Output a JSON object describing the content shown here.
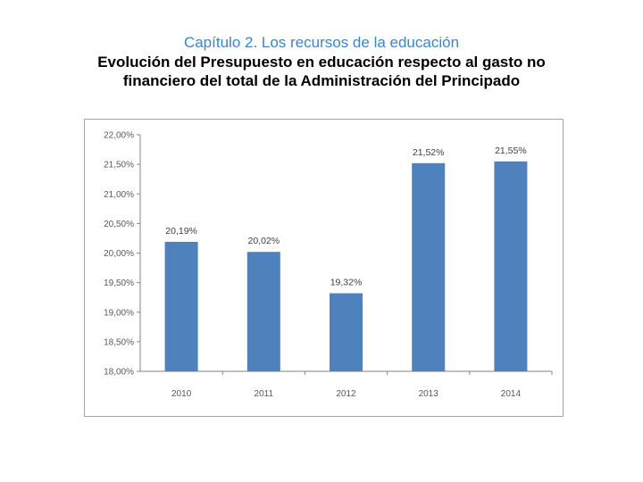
{
  "header": {
    "chapter": "Capítulo 2. Los recursos de la educación",
    "subtitle_line1": "Evolución del  Presupuesto en educación respecto al gasto no",
    "subtitle_line2": "financiero del total de la Administración del Principado"
  },
  "colors": {
    "chapter": "#3a86c8",
    "bar": "#4f81bd",
    "axis": "#868686"
  },
  "chart_data": {
    "type": "bar",
    "categories": [
      "2010",
      "2011",
      "2012",
      "2013",
      "2014"
    ],
    "values": [
      20.19,
      20.02,
      19.32,
      21.52,
      21.55
    ],
    "data_labels": [
      "20,19%",
      "20,02%",
      "19,32%",
      "21,52%",
      "21,55%"
    ],
    "ylim": [
      18.0,
      22.0
    ],
    "yticks": [
      18.0,
      18.5,
      19.0,
      19.5,
      20.0,
      20.5,
      21.0,
      21.5,
      22.0
    ],
    "ytick_labels": [
      "18,00%",
      "18,50%",
      "19,00%",
      "19,50%",
      "20,00%",
      "20,50%",
      "21,00%",
      "21,50%",
      "22,00%"
    ],
    "grid": false,
    "legend": "none"
  }
}
